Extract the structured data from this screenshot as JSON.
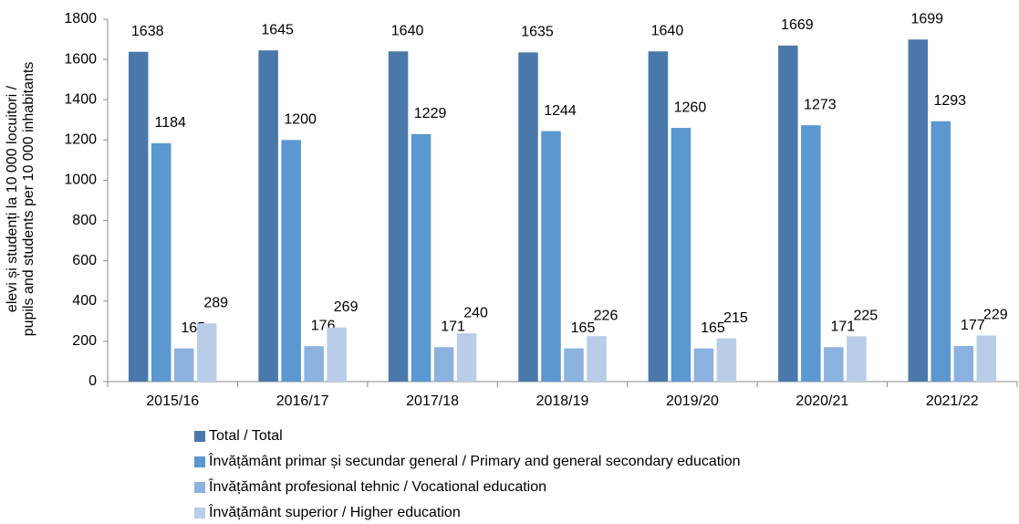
{
  "chart_data": {
    "type": "bar",
    "y_label": [
      "elevi și studenți la 10 000 locuitori /",
      "pupils and students per 10 000 inhabitants"
    ],
    "categories": [
      "2015/16",
      "2016/17",
      "2017/18",
      "2018/19",
      "2019/20",
      "2020/21",
      "2021/22"
    ],
    "series": [
      {
        "name": "Total / Total",
        "color": "#4a78ab",
        "values": [
          1638,
          1645,
          1640,
          1635,
          1640,
          1669,
          1699
        ]
      },
      {
        "name": "Învățământ primar și secundar general / Primary and general secondary education",
        "color": "#5b97d1",
        "values": [
          1184,
          1200,
          1229,
          1244,
          1260,
          1273,
          1293
        ]
      },
      {
        "name": "Învățământ profesional tehnic / Vocational education",
        "color": "#8cb2df",
        "values": [
          165,
          176,
          171,
          165,
          165,
          171,
          177
        ]
      },
      {
        "name": "Învățământ superior / Higher education",
        "color": "#b9cde8",
        "values": [
          289,
          269,
          240,
          226,
          215,
          225,
          229
        ]
      }
    ],
    "ylim": [
      0,
      1800
    ],
    "yticks": [
      0,
      200,
      400,
      600,
      800,
      1000,
      1200,
      1400,
      1600,
      1800
    ],
    "grid": false,
    "legend": "bottom"
  }
}
